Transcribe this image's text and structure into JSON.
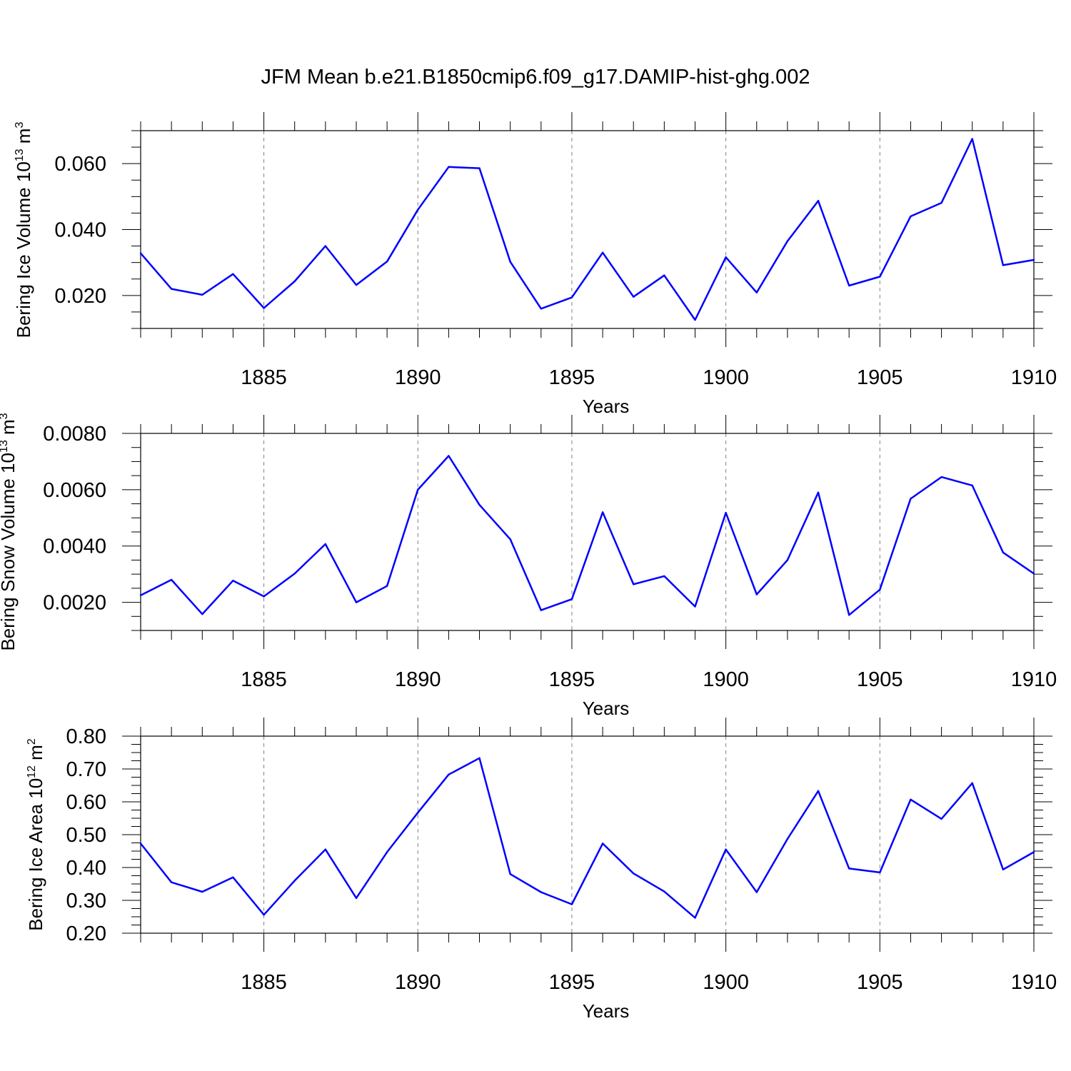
{
  "figure": {
    "title": "JFM Mean b.e21.B1850cmip6.f09_g17.DAMIP-hist-ghg.002",
    "line_color": "#0000ff",
    "grid_color": "#808080"
  },
  "chart_data": [
    {
      "type": "line",
      "ylabel": "Bering Ice Volume 10",
      "ylabel_sup1": "13",
      "ylabel_unit": " m",
      "ylabel_sup2": "3",
      "xlabel": "Years",
      "xlim": [
        1881,
        1910
      ],
      "ylim": [
        0.01,
        0.07
      ],
      "xticks": [
        1885,
        1890,
        1895,
        1900,
        1905,
        1910
      ],
      "yticks": [
        0.02,
        0.04,
        0.06
      ],
      "ytick_labels": [
        "0.020",
        "0.040",
        "0.060"
      ],
      "grid": "vertical dashed at major x ticks",
      "x": [
        1881,
        1882,
        1883,
        1884,
        1885,
        1886,
        1887,
        1888,
        1889,
        1890,
        1891,
        1892,
        1893,
        1894,
        1895,
        1896,
        1897,
        1898,
        1899,
        1900,
        1901,
        1902,
        1903,
        1904,
        1905,
        1906,
        1907,
        1908,
        1909,
        1910
      ],
      "values": [
        0.0328,
        0.022,
        0.0202,
        0.0265,
        0.0162,
        0.0243,
        0.035,
        0.0232,
        0.0303,
        0.046,
        0.059,
        0.0586,
        0.0302,
        0.016,
        0.0194,
        0.033,
        0.0196,
        0.0261,
        0.0126,
        0.0316,
        0.0209,
        0.0365,
        0.0487,
        0.023,
        0.0257,
        0.044,
        0.0481,
        0.0675,
        0.0292,
        0.0308
      ]
    },
    {
      "type": "line",
      "ylabel": "Bering Snow Volume 10",
      "ylabel_sup1": "13",
      "ylabel_unit": " m",
      "ylabel_sup2": "3",
      "xlabel": "Years",
      "xlim": [
        1881,
        1910
      ],
      "ylim": [
        0.001,
        0.008
      ],
      "xticks": [
        1885,
        1890,
        1895,
        1900,
        1905,
        1910
      ],
      "yticks": [
        0.002,
        0.004,
        0.006,
        0.008
      ],
      "ytick_labels": [
        "0.0020",
        "0.0040",
        "0.0060",
        "0.0080"
      ],
      "grid": "vertical dashed at major x ticks",
      "x": [
        1881,
        1882,
        1883,
        1884,
        1885,
        1886,
        1887,
        1888,
        1889,
        1890,
        1891,
        1892,
        1893,
        1894,
        1895,
        1896,
        1897,
        1898,
        1899,
        1900,
        1901,
        1902,
        1903,
        1904,
        1905,
        1906,
        1907,
        1908,
        1909,
        1910
      ],
      "values": [
        0.00225,
        0.0028,
        0.00158,
        0.00277,
        0.00221,
        0.00302,
        0.00407,
        0.002,
        0.00258,
        0.006,
        0.0072,
        0.00546,
        0.00424,
        0.00172,
        0.00211,
        0.0052,
        0.00264,
        0.00293,
        0.00185,
        0.00518,
        0.00228,
        0.0035,
        0.0059,
        0.00155,
        0.00245,
        0.00568,
        0.00645,
        0.00615,
        0.00377,
        0.00302
      ]
    },
    {
      "type": "line",
      "ylabel": "Bering Ice Area 10",
      "ylabel_sup1": "12",
      "ylabel_unit": " m",
      "ylabel_sup2": "2",
      "xlabel": "Years",
      "xlim": [
        1881,
        1910
      ],
      "ylim": [
        0.2,
        0.8
      ],
      "xticks": [
        1885,
        1890,
        1895,
        1900,
        1905,
        1910
      ],
      "yticks": [
        0.2,
        0.3,
        0.4,
        0.5,
        0.6,
        0.7,
        0.8
      ],
      "ytick_labels": [
        "0.20",
        "0.30",
        "0.40",
        "0.50",
        "0.60",
        "0.70",
        "0.80"
      ],
      "grid": "vertical dashed at major x ticks",
      "x": [
        1881,
        1882,
        1883,
        1884,
        1885,
        1886,
        1887,
        1888,
        1889,
        1890,
        1891,
        1892,
        1893,
        1894,
        1895,
        1896,
        1897,
        1898,
        1899,
        1900,
        1901,
        1902,
        1903,
        1904,
        1905,
        1906,
        1907,
        1908,
        1909,
        1910
      ],
      "values": [
        0.473,
        0.355,
        0.326,
        0.37,
        0.256,
        0.36,
        0.455,
        0.307,
        0.447,
        0.567,
        0.683,
        0.733,
        0.38,
        0.325,
        0.288,
        0.473,
        0.382,
        0.327,
        0.247,
        0.455,
        0.325,
        0.487,
        0.633,
        0.397,
        0.385,
        0.607,
        0.548,
        0.657,
        0.394,
        0.447
      ]
    }
  ]
}
